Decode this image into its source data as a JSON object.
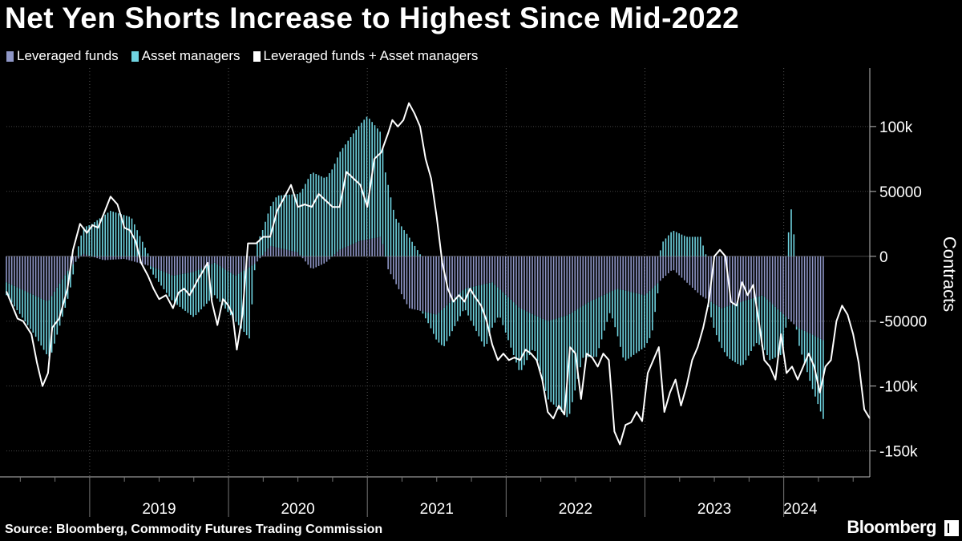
{
  "title": "Net Yen Shorts Increase to Highest Since Mid-2022",
  "colors": {
    "leveraged": "#8f97c7",
    "asset": "#6fd3e0",
    "combined": "#ffffff"
  },
  "footer": {
    "source": "Source: Bloomberg, Commodity Futures Trading Commission",
    "brand": "Bloomberg"
  },
  "chart_data": {
    "type": "bar",
    "title": "Net Yen Shorts Increase to Highest Since Mid-2022",
    "ylabel": "Contracts",
    "xlabel": "",
    "ylim": [
      -170000,
      145000
    ],
    "xlim": [
      2018.4,
      2024.62
    ],
    "yticks": [
      100000,
      50000,
      0,
      -50000,
      -100000,
      -150000
    ],
    "ytick_labels": [
      "100k",
      "50000",
      "0",
      "-50000",
      "-100k",
      "-150k"
    ],
    "year_labels": [
      "2019",
      "2020",
      "2021",
      "2022",
      "2023",
      "2024"
    ],
    "year_label_positions": [
      2019.5,
      2020.5,
      2021.5,
      2022.5,
      2023.5,
      2024.12
    ],
    "legend": [
      "Leveraged funds",
      "Asset managers",
      "Leveraged funds + Asset managers"
    ],
    "legend_position": "top-left",
    "stacked": true,
    "series": [
      {
        "name": "Leveraged funds",
        "points": [
          [
            2018.4,
            -20000
          ],
          [
            2018.7,
            -35000
          ],
          [
            2018.85,
            -10000
          ],
          [
            2018.95,
            2000
          ],
          [
            2019.1,
            -3000
          ],
          [
            2019.25,
            -2000
          ],
          [
            2019.45,
            -8000
          ],
          [
            2019.6,
            -15000
          ],
          [
            2019.75,
            -12000
          ],
          [
            2019.9,
            -5000
          ],
          [
            2020.05,
            -15000
          ],
          [
            2020.2,
            -5000
          ],
          [
            2020.3,
            8000
          ],
          [
            2020.5,
            3000
          ],
          [
            2020.6,
            -10000
          ],
          [
            2020.7,
            -5000
          ],
          [
            2020.8,
            5000
          ],
          [
            2020.95,
            12000
          ],
          [
            2021.1,
            15000
          ],
          [
            2021.15,
            -10000
          ],
          [
            2021.3,
            -40000
          ],
          [
            2021.5,
            -45000
          ],
          [
            2021.7,
            -25000
          ],
          [
            2021.9,
            -20000
          ],
          [
            2022.1,
            -40000
          ],
          [
            2022.3,
            -50000
          ],
          [
            2022.45,
            -45000
          ],
          [
            2022.6,
            -35000
          ],
          [
            2022.8,
            -25000
          ],
          [
            2023.0,
            -30000
          ],
          [
            2023.2,
            -10000
          ],
          [
            2023.4,
            -30000
          ],
          [
            2023.55,
            -40000
          ],
          [
            2023.7,
            -35000
          ],
          [
            2023.85,
            -30000
          ],
          [
            2024.0,
            -45000
          ],
          [
            2024.1,
            -55000
          ],
          [
            2024.2,
            -60000
          ],
          [
            2024.29,
            -65000
          ]
        ]
      },
      {
        "name": "Asset managers",
        "points": [
          [
            2018.4,
            -10000
          ],
          [
            2018.6,
            -30000
          ],
          [
            2018.72,
            -45000
          ],
          [
            2018.85,
            -20000
          ],
          [
            2018.95,
            20000
          ],
          [
            2019.15,
            35000
          ],
          [
            2019.3,
            30000
          ],
          [
            2019.45,
            -5000
          ],
          [
            2019.6,
            -20000
          ],
          [
            2019.75,
            -35000
          ],
          [
            2019.9,
            -25000
          ],
          [
            2020.05,
            -35000
          ],
          [
            2020.15,
            -55000
          ],
          [
            2020.2,
            10000
          ],
          [
            2020.35,
            40000
          ],
          [
            2020.5,
            45000
          ],
          [
            2020.6,
            65000
          ],
          [
            2020.7,
            60000
          ],
          [
            2020.8,
            75000
          ],
          [
            2020.9,
            85000
          ],
          [
            2021.0,
            95000
          ],
          [
            2021.1,
            80000
          ],
          [
            2021.2,
            30000
          ],
          [
            2021.3,
            15000
          ],
          [
            2021.45,
            -10000
          ],
          [
            2021.55,
            -30000
          ],
          [
            2021.7,
            -15000
          ],
          [
            2021.85,
            -50000
          ],
          [
            2021.95,
            -20000
          ],
          [
            2022.1,
            -50000
          ],
          [
            2022.2,
            -25000
          ],
          [
            2022.3,
            -60000
          ],
          [
            2022.45,
            -80000
          ],
          [
            2022.55,
            -40000
          ],
          [
            2022.65,
            -45000
          ],
          [
            2022.75,
            -15000
          ],
          [
            2022.85,
            -55000
          ],
          [
            2022.95,
            -45000
          ],
          [
            2023.05,
            -35000
          ],
          [
            2023.12,
            10000
          ],
          [
            2023.2,
            20000
          ],
          [
            2023.3,
            15000
          ],
          [
            2023.4,
            15000
          ],
          [
            2023.5,
            -20000
          ],
          [
            2023.6,
            -40000
          ],
          [
            2023.7,
            -50000
          ],
          [
            2023.8,
            -35000
          ],
          [
            2023.9,
            -45000
          ],
          [
            2024.0,
            -30000
          ],
          [
            2024.05,
            40000
          ],
          [
            2024.1,
            -10000
          ],
          [
            2024.2,
            -40000
          ],
          [
            2024.29,
            -62000
          ]
        ]
      },
      {
        "name": "Leveraged funds + Asset managers",
        "points": [
          [
            2018.4,
            -27000
          ],
          [
            2018.48,
            -48000
          ],
          [
            2018.52,
            -50000
          ],
          [
            2018.58,
            -60000
          ],
          [
            2018.62,
            -82000
          ],
          [
            2018.66,
            -100000
          ],
          [
            2018.7,
            -90000
          ],
          [
            2018.73,
            -55000
          ],
          [
            2018.78,
            -48000
          ],
          [
            2018.84,
            -25000
          ],
          [
            2018.88,
            5000
          ],
          [
            2018.93,
            25000
          ],
          [
            2018.98,
            18000
          ],
          [
            2019.02,
            24000
          ],
          [
            2019.06,
            22000
          ],
          [
            2019.11,
            35000
          ],
          [
            2019.15,
            46000
          ],
          [
            2019.2,
            40000
          ],
          [
            2019.25,
            22000
          ],
          [
            2019.29,
            20000
          ],
          [
            2019.33,
            12000
          ],
          [
            2019.37,
            -5000
          ],
          [
            2019.42,
            -15000
          ],
          [
            2019.46,
            -25000
          ],
          [
            2019.5,
            -33000
          ],
          [
            2019.55,
            -30000
          ],
          [
            2019.6,
            -40000
          ],
          [
            2019.64,
            -28000
          ],
          [
            2019.68,
            -25000
          ],
          [
            2019.72,
            -30000
          ],
          [
            2019.78,
            -18000
          ],
          [
            2019.85,
            -5000
          ],
          [
            2019.88,
            -35000
          ],
          [
            2019.92,
            -53000
          ],
          [
            2019.96,
            -33000
          ],
          [
            2020.0,
            -38000
          ],
          [
            2020.03,
            -45000
          ],
          [
            2020.06,
            -72000
          ],
          [
            2020.1,
            -45000
          ],
          [
            2020.14,
            10000
          ],
          [
            2020.2,
            10000
          ],
          [
            2020.25,
            15000
          ],
          [
            2020.3,
            15000
          ],
          [
            2020.35,
            35000
          ],
          [
            2020.4,
            45000
          ],
          [
            2020.45,
            55000
          ],
          [
            2020.5,
            38000
          ],
          [
            2020.55,
            40000
          ],
          [
            2020.6,
            38000
          ],
          [
            2020.65,
            48000
          ],
          [
            2020.7,
            43000
          ],
          [
            2020.75,
            38000
          ],
          [
            2020.8,
            38000
          ],
          [
            2020.85,
            65000
          ],
          [
            2020.9,
            60000
          ],
          [
            2020.95,
            55000
          ],
          [
            2021.0,
            38000
          ],
          [
            2021.05,
            75000
          ],
          [
            2021.1,
            80000
          ],
          [
            2021.15,
            95000
          ],
          [
            2021.18,
            105000
          ],
          [
            2021.22,
            100000
          ],
          [
            2021.26,
            105000
          ],
          [
            2021.3,
            118000
          ],
          [
            2021.34,
            110000
          ],
          [
            2021.38,
            100000
          ],
          [
            2021.42,
            75000
          ],
          [
            2021.46,
            60000
          ],
          [
            2021.5,
            30000
          ],
          [
            2021.54,
            -5000
          ],
          [
            2021.58,
            -25000
          ],
          [
            2021.62,
            -35000
          ],
          [
            2021.66,
            -30000
          ],
          [
            2021.7,
            -35000
          ],
          [
            2021.74,
            -25000
          ],
          [
            2021.78,
            -32000
          ],
          [
            2021.82,
            -38000
          ],
          [
            2021.86,
            -50000
          ],
          [
            2021.9,
            -68000
          ],
          [
            2021.94,
            -80000
          ],
          [
            2021.98,
            -75000
          ],
          [
            2022.02,
            -80000
          ],
          [
            2022.06,
            -78000
          ],
          [
            2022.1,
            -80000
          ],
          [
            2022.14,
            -72000
          ],
          [
            2022.18,
            -75000
          ],
          [
            2022.22,
            -80000
          ],
          [
            2022.26,
            -95000
          ],
          [
            2022.3,
            -120000
          ],
          [
            2022.34,
            -125000
          ],
          [
            2022.38,
            -115000
          ],
          [
            2022.42,
            -122000
          ],
          [
            2022.46,
            -70000
          ],
          [
            2022.5,
            -75000
          ],
          [
            2022.54,
            -110000
          ],
          [
            2022.58,
            -75000
          ],
          [
            2022.62,
            -78000
          ],
          [
            2022.66,
            -85000
          ],
          [
            2022.7,
            -75000
          ],
          [
            2022.74,
            -80000
          ],
          [
            2022.78,
            -135000
          ],
          [
            2022.82,
            -145000
          ],
          [
            2022.86,
            -130000
          ],
          [
            2022.9,
            -128000
          ],
          [
            2022.94,
            -120000
          ],
          [
            2022.98,
            -127000
          ],
          [
            2023.02,
            -90000
          ],
          [
            2023.06,
            -80000
          ],
          [
            2023.1,
            -70000
          ],
          [
            2023.14,
            -120000
          ],
          [
            2023.18,
            -105000
          ],
          [
            2023.22,
            -95000
          ],
          [
            2023.26,
            -115000
          ],
          [
            2023.3,
            -100000
          ],
          [
            2023.34,
            -80000
          ],
          [
            2023.38,
            -70000
          ],
          [
            2023.42,
            -55000
          ],
          [
            2023.46,
            -35000
          ],
          [
            2023.5,
            0
          ],
          [
            2023.54,
            5000
          ],
          [
            2023.58,
            0
          ],
          [
            2023.62,
            -35000
          ],
          [
            2023.66,
            -38000
          ],
          [
            2023.7,
            -20000
          ],
          [
            2023.74,
            -30000
          ],
          [
            2023.78,
            -22000
          ],
          [
            2023.82,
            -50000
          ],
          [
            2023.86,
            -80000
          ],
          [
            2023.9,
            -85000
          ],
          [
            2023.94,
            -95000
          ],
          [
            2023.98,
            -60000
          ],
          [
            2024.02,
            -90000
          ],
          [
            2024.06,
            -85000
          ],
          [
            2024.1,
            -95000
          ],
          [
            2024.14,
            -85000
          ],
          [
            2024.18,
            -75000
          ],
          [
            2024.22,
            -85000
          ],
          [
            2024.26,
            -105000
          ],
          [
            2024.3,
            -85000
          ],
          [
            2024.34,
            -80000
          ],
          [
            2024.38,
            -50000
          ],
          [
            2024.42,
            -38000
          ],
          [
            2024.46,
            -45000
          ],
          [
            2024.5,
            -60000
          ],
          [
            2024.54,
            -82000
          ],
          [
            2024.58,
            -118000
          ],
          [
            2024.62,
            -125000
          ]
        ]
      }
    ]
  }
}
